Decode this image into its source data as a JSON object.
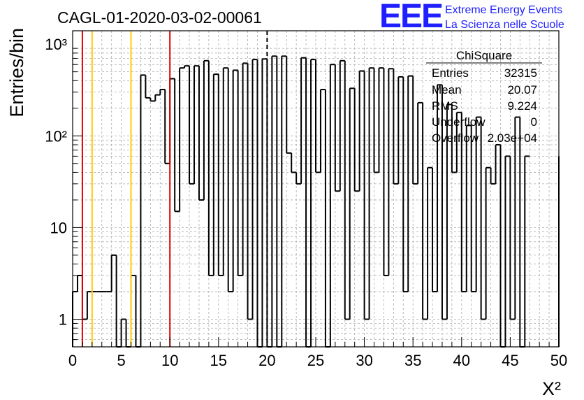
{
  "colors": {
    "histogram": "#000000",
    "red_line": "#e00000",
    "yellow_line": "#ffcc00",
    "grid": "#aaaaaa",
    "logo": "#1f1fff"
  },
  "logo": {
    "mark": "EEE",
    "line1": "Extreme Energy Events",
    "line2": "La Scienza nelle Scuole"
  },
  "stats": {
    "title": "ChiSquare",
    "rows": [
      {
        "label": "Entries",
        "value": "32315"
      },
      {
        "label": "Mean",
        "value": "20.07"
      },
      {
        "label": "RMS",
        "value": "9.224"
      },
      {
        "label": "Underflow",
        "value": "0"
      },
      {
        "label": "Overflow",
        "value": "2.03e+04"
      }
    ]
  },
  "chart_data": {
    "type": "histogram",
    "title": "CAGL-01-2020-03-02-00061",
    "xlabel": "X²",
    "ylabel": "Entries/bin",
    "xlim": [
      0,
      50
    ],
    "ylim": [
      0.5,
      1400
    ],
    "yscale": "log",
    "grid": true,
    "bin_width": 0.5,
    "x_ticks": [
      "0",
      "5",
      "10",
      "15",
      "20",
      "25",
      "30",
      "35",
      "40",
      "45",
      "50"
    ],
    "y_ticks": [
      {
        "value": 1,
        "label": "1"
      },
      {
        "value": 10,
        "label": "10"
      },
      {
        "value": 100,
        "label": "10²"
      },
      {
        "value": 1000,
        "label": "10³"
      }
    ],
    "values": [
      2,
      3,
      1,
      2,
      2,
      2,
      2,
      2,
      5,
      0,
      1,
      0,
      3,
      0,
      460,
      260,
      240,
      280,
      320,
      50,
      420,
      15,
      550,
      580,
      30,
      580,
      20,
      660,
      3,
      470,
      3,
      550,
      2,
      520,
      3,
      620,
      1,
      680,
      0,
      690,
      0,
      740,
      0,
      740,
      65,
      40,
      30,
      710,
      0,
      680,
      40,
      320,
      0,
      600,
      25,
      660,
      1,
      330,
      25,
      510,
      1,
      550,
      40,
      550,
      3,
      540,
      30,
      440,
      2,
      450,
      30,
      230,
      1,
      45,
      2,
      360,
      1,
      220,
      40,
      180,
      2,
      130,
      2,
      160,
      1,
      45,
      30,
      80,
      0,
      60,
      1,
      160,
      0,
      60
    ],
    "vertical_lines": [
      {
        "x": 1,
        "color": "red"
      },
      {
        "x": 2,
        "color": "yellow"
      },
      {
        "x": 6,
        "color": "yellow"
      },
      {
        "x": 10,
        "color": "red"
      },
      {
        "x": 20,
        "color": "black-dashed"
      }
    ]
  }
}
